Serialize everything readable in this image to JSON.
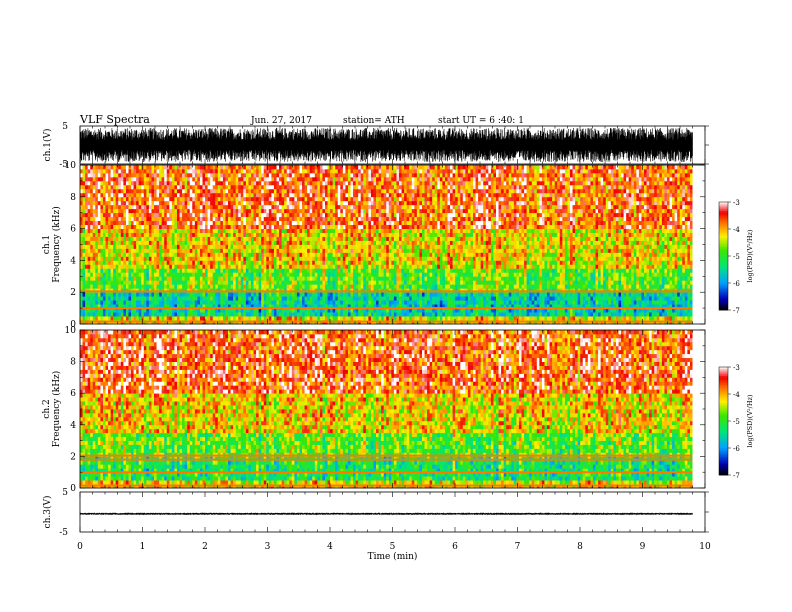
{
  "header": {
    "title": "VLF  Spectra",
    "date": "Jun. 27, 2017",
    "station": "station= ATH",
    "start": "start  UT  =   6  :40: 1"
  },
  "chart_data": [
    {
      "type": "line",
      "panel": "ch1-waveform",
      "ylabel": "ch.1(V)",
      "ylim": [
        -5,
        5
      ],
      "ytick_labels": [
        "5",
        "-5"
      ],
      "xlim": [
        0,
        10
      ],
      "data_end_min": 9.8,
      "description_values": {
        "amplitude_min": -4.5,
        "amplitude_max": 4.5,
        "mean": 0
      }
    },
    {
      "type": "heatmap",
      "panel": "ch1-spectrogram",
      "ylabel": [
        "ch.1",
        "Frequency  (kHz)"
      ],
      "ylim": [
        0,
        10
      ],
      "ytick_labels": [
        "0",
        "2",
        "4",
        "6",
        "8",
        "10"
      ],
      "xlim": [
        0,
        10
      ],
      "colorbar": {
        "label": "log(PSD)(V²/Hz)",
        "range": [
          -7,
          -3
        ],
        "tick_labels": [
          "-3",
          "-4",
          "-5",
          "-6",
          "-7"
        ]
      },
      "bands": [
        {
          "freq_khz": [
            6,
            10
          ],
          "level": -3.6
        },
        {
          "freq_khz": [
            3.5,
            6
          ],
          "level": -4.2
        },
        {
          "freq_khz": [
            2,
            3.5
          ],
          "level": -4.8
        },
        {
          "freq_khz": [
            0.5,
            2
          ],
          "level": -5.5
        },
        {
          "freq_khz": [
            0,
            0.5
          ],
          "level": -4.3
        }
      ],
      "line_freqs_khz": [
        2.05,
        1.0,
        0.15
      ]
    },
    {
      "type": "heatmap",
      "panel": "ch2-spectrogram",
      "ylabel": [
        "ch.2",
        "Frequency  (kHz)"
      ],
      "ylim": [
        0,
        10
      ],
      "ytick_labels": [
        "0",
        "2",
        "4",
        "6",
        "8",
        "10"
      ],
      "xlim": [
        0,
        10
      ],
      "colorbar": {
        "label": "log(PSD)(V²/Hz)",
        "range": [
          -7,
          -3
        ],
        "tick_labels": [
          "-3",
          "-4",
          "-5",
          "-6",
          "-7"
        ]
      },
      "bands": [
        {
          "freq_khz": [
            6,
            10
          ],
          "level": -3.6
        },
        {
          "freq_khz": [
            3.5,
            6
          ],
          "level": -4.2
        },
        {
          "freq_khz": [
            2,
            3.5
          ],
          "level": -4.8
        },
        {
          "freq_khz": [
            0.5,
            2
          ],
          "level": -5.2
        },
        {
          "freq_khz": [
            0,
            0.5
          ],
          "level": -4.3
        }
      ],
      "line_freqs_khz": [
        2.05,
        1.8,
        1.0,
        0.15
      ]
    },
    {
      "type": "line",
      "panel": "ch3-waveform",
      "ylabel": "ch.3(V)",
      "ylim": [
        -5,
        5
      ],
      "ytick_labels": [
        "5",
        "-5"
      ],
      "xlim": [
        0,
        10
      ],
      "data_end_min": 9.8,
      "description_values": {
        "amplitude_min": -0.7,
        "amplitude_max": -0.2,
        "mean": -0.45
      }
    }
  ],
  "xaxis": {
    "label": "Time  (min)",
    "tick_labels": [
      "0",
      "1",
      "2",
      "3",
      "4",
      "5",
      "6",
      "7",
      "8",
      "9",
      "10"
    ]
  }
}
